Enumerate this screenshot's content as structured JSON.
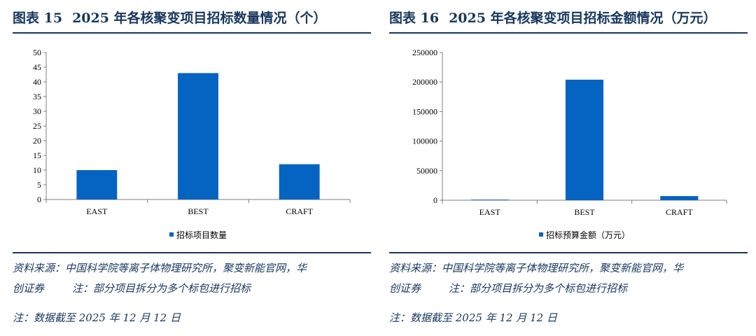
{
  "left": {
    "title_num": "图表 15",
    "title_text": "2025 年各核聚变项目招标数量情况（个）",
    "source_line1": "资料来源：中国科学院等离子体物理研究所，聚变新能官网，华",
    "source_line2a": "创证券",
    "source_line2b": "注：部分项目拆分为多个标包进行招标",
    "date_note": "注：数据截至 2025 年 12 月 12 日"
  },
  "right": {
    "title_num": "图表 16",
    "title_text": "2025 年各核聚变项目招标金额情况（万元）",
    "source_line1": "资料来源：中国科学院等离子体物理研究所，聚变新能官网，华",
    "source_line2a": "创证券",
    "source_line2b": "注：部分项目拆分为多个标包进行招标",
    "date_note": "注：数据截至 2025 年 12 月 12 日"
  },
  "chart_data": [
    {
      "type": "bar",
      "categories": [
        "EAST",
        "BEST",
        "CRAFT"
      ],
      "series": [
        {
          "name": "招标项目数量",
          "values": [
            10,
            43,
            12
          ]
        }
      ],
      "ylim": [
        0,
        50
      ],
      "yticks": [
        0,
        5,
        10,
        15,
        20,
        25,
        30,
        35,
        40,
        45,
        50
      ],
      "legend": "bottom",
      "grid": false,
      "bar_color": "#0563C1"
    },
    {
      "type": "bar",
      "categories": [
        "EAST",
        "BEST",
        "CRAFT"
      ],
      "series": [
        {
          "name": "招标预算金额（万元）",
          "values": [
            1000,
            204000,
            7000
          ]
        }
      ],
      "ylim": [
        0,
        250000
      ],
      "yticks": [
        0,
        50000,
        100000,
        150000,
        200000,
        250000
      ],
      "legend": "bottom",
      "grid": false,
      "bar_color": "#0563C1"
    }
  ]
}
